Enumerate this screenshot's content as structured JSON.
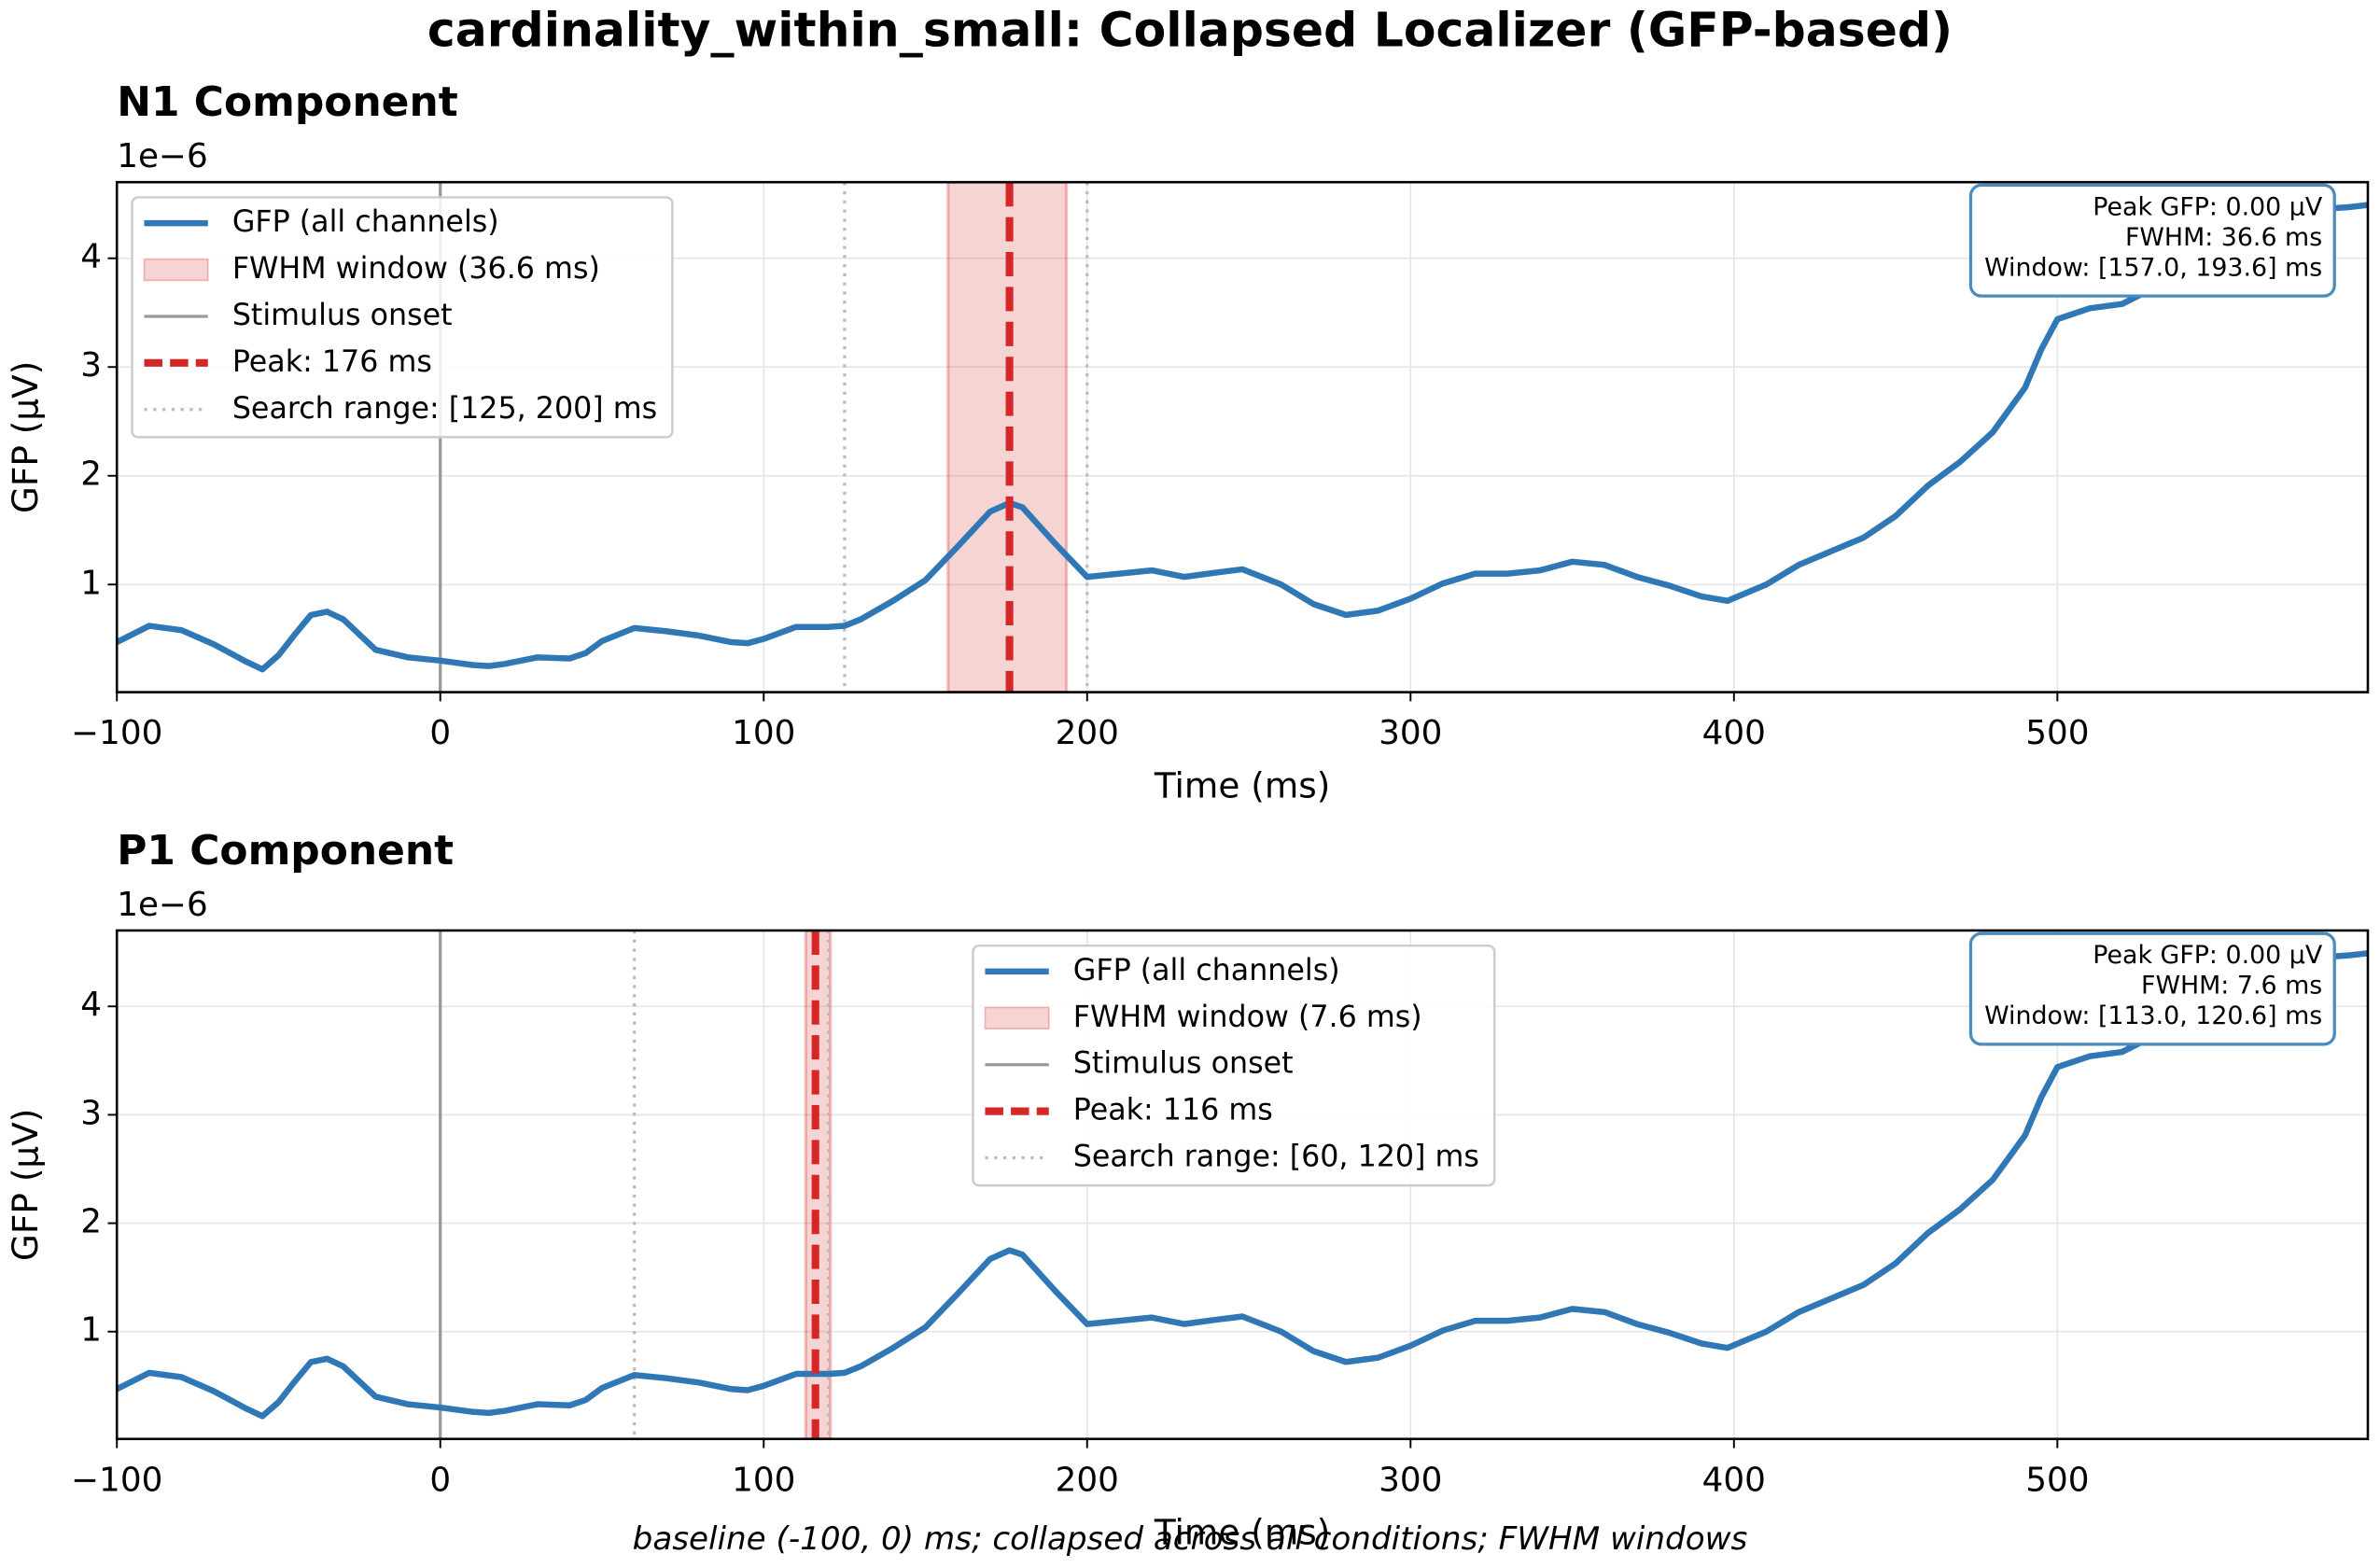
{
  "chart_data": [
    {
      "type": "line",
      "suptitle": "cardinality_within_small: Collapsed Localizer (GFP-based)",
      "title": "N1 Component",
      "xlabel": "Time (ms)",
      "ylabel": "GFP (µV)",
      "offset_label": "1e−6",
      "x": [
        -100,
        -90,
        -80,
        -70,
        -60,
        -55,
        -50,
        -45,
        -40,
        -35,
        -30,
        -25,
        -20,
        -10,
        0,
        10,
        15,
        20,
        30,
        40,
        45,
        50,
        60,
        70,
        80,
        90,
        95,
        100,
        110,
        120,
        125,
        130,
        140,
        150,
        160,
        170,
        176,
        180,
        190,
        200,
        210,
        220,
        230,
        240,
        248,
        260,
        270,
        280,
        290,
        300,
        310,
        320,
        330,
        340,
        350,
        360,
        370,
        380,
        390,
        398,
        410,
        420,
        440,
        450,
        460,
        470,
        480,
        490,
        495,
        500,
        510,
        520,
        530,
        540,
        550,
        560,
        570,
        580,
        590,
        596
      ],
      "series": [
        {
          "name": "GFP (all channels)",
          "color": "#2f78b5",
          "values": [
            0.47,
            0.62,
            0.58,
            0.45,
            0.29,
            0.22,
            0.35,
            0.54,
            0.72,
            0.75,
            0.68,
            0.54,
            0.4,
            0.33,
            0.3,
            0.26,
            0.25,
            0.27,
            0.33,
            0.32,
            0.37,
            0.48,
            0.6,
            0.57,
            0.53,
            0.47,
            0.46,
            0.5,
            0.61,
            0.61,
            0.62,
            0.68,
            0.85,
            1.04,
            1.35,
            1.67,
            1.75,
            1.71,
            1.38,
            1.07,
            1.1,
            1.13,
            1.07,
            1.11,
            1.14,
            1.0,
            0.82,
            0.72,
            0.76,
            0.87,
            1.01,
            1.1,
            1.1,
            1.13,
            1.21,
            1.18,
            1.07,
            0.99,
            0.89,
            0.85,
            1.0,
            1.18,
            1.43,
            1.63,
            1.91,
            2.13,
            2.4,
            2.81,
            3.16,
            3.44,
            3.54,
            3.58,
            3.73,
            3.83,
            3.8,
            4.03,
            4.35,
            4.45,
            4.47,
            4.49
          ]
        }
      ],
      "fwhm_window": {
        "name": "FWHM window (36.6 ms)",
        "color": "#d62728",
        "range": [
          157.0,
          193.6
        ]
      },
      "onset": {
        "name": "Stimulus onset",
        "color": "#999999",
        "x": 0
      },
      "peak": {
        "name": "Peak: 176 ms",
        "color": "#d62728",
        "x": 176
      },
      "search_range": {
        "name": "Search range: [125, 200] ms",
        "color": "#bbbbbb",
        "x": [
          125,
          200
        ]
      },
      "annotation": [
        "Peak GFP: 0.00 µV",
        "FWHM: 36.6 ms",
        "Window: [157.0, 193.6] ms"
      ],
      "legend": "upper left",
      "grid": true,
      "xlim": [
        -100,
        596
      ],
      "ylim": [
        0.01,
        4.7
      ],
      "xticks": [
        {
          "value": -100,
          "label": "−100"
        },
        0,
        100,
        200,
        300,
        400,
        500
      ],
      "yticks": [
        1,
        2,
        3,
        4
      ]
    },
    {
      "type": "line",
      "title": "P1 Component",
      "xlabel": "Time (ms)",
      "ylabel": "GFP (µV)",
      "offset_label": "1e−6",
      "x": [
        -100,
        -90,
        -80,
        -70,
        -60,
        -55,
        -50,
        -45,
        -40,
        -35,
        -30,
        -25,
        -20,
        -10,
        0,
        10,
        15,
        20,
        30,
        40,
        45,
        50,
        60,
        70,
        80,
        90,
        95,
        100,
        110,
        120,
        125,
        130,
        140,
        150,
        160,
        170,
        176,
        180,
        190,
        200,
        210,
        220,
        230,
        240,
        248,
        260,
        270,
        280,
        290,
        300,
        310,
        320,
        330,
        340,
        350,
        360,
        370,
        380,
        390,
        398,
        410,
        420,
        440,
        450,
        460,
        470,
        480,
        490,
        495,
        500,
        510,
        520,
        530,
        540,
        550,
        560,
        570,
        580,
        590,
        596
      ],
      "series": [
        {
          "name": "GFP (all channels)",
          "color": "#2f78b5",
          "values": [
            0.47,
            0.62,
            0.58,
            0.45,
            0.29,
            0.22,
            0.35,
            0.54,
            0.72,
            0.75,
            0.68,
            0.54,
            0.4,
            0.33,
            0.3,
            0.26,
            0.25,
            0.27,
            0.33,
            0.32,
            0.37,
            0.48,
            0.6,
            0.57,
            0.53,
            0.47,
            0.46,
            0.5,
            0.61,
            0.61,
            0.62,
            0.68,
            0.85,
            1.04,
            1.35,
            1.67,
            1.75,
            1.71,
            1.38,
            1.07,
            1.1,
            1.13,
            1.07,
            1.11,
            1.14,
            1.0,
            0.82,
            0.72,
            0.76,
            0.87,
            1.01,
            1.1,
            1.1,
            1.13,
            1.21,
            1.18,
            1.07,
            0.99,
            0.89,
            0.85,
            1.0,
            1.18,
            1.43,
            1.63,
            1.91,
            2.13,
            2.4,
            2.81,
            3.16,
            3.44,
            3.54,
            3.58,
            3.73,
            3.83,
            3.8,
            4.03,
            4.35,
            4.45,
            4.47,
            4.49
          ]
        }
      ],
      "fwhm_window": {
        "name": "FWHM window (7.6 ms)",
        "color": "#d62728",
        "range": [
          113.0,
          120.6
        ]
      },
      "onset": {
        "name": "Stimulus onset",
        "color": "#999999",
        "x": 0
      },
      "peak": {
        "name": "Peak: 116 ms",
        "color": "#d62728",
        "x": 116
      },
      "search_range": {
        "name": "Search range: [60, 120] ms",
        "color": "#bbbbbb",
        "x": [
          60,
          120
        ]
      },
      "annotation": [
        "Peak GFP: 0.00 µV",
        "FWHM: 7.6 ms",
        "Window: [113.0, 120.6] ms"
      ],
      "legend": "upper center",
      "grid": true,
      "xlim": [
        -100,
        596
      ],
      "ylim": [
        0.01,
        4.7
      ],
      "xticks": [
        {
          "value": -100,
          "label": "−100"
        },
        0,
        100,
        200,
        300,
        400,
        500
      ],
      "yticks": [
        1,
        2,
        3,
        4
      ],
      "footnote": "baseline (-100, 0) ms; collapsed across all conditions; FWHM windows"
    }
  ]
}
